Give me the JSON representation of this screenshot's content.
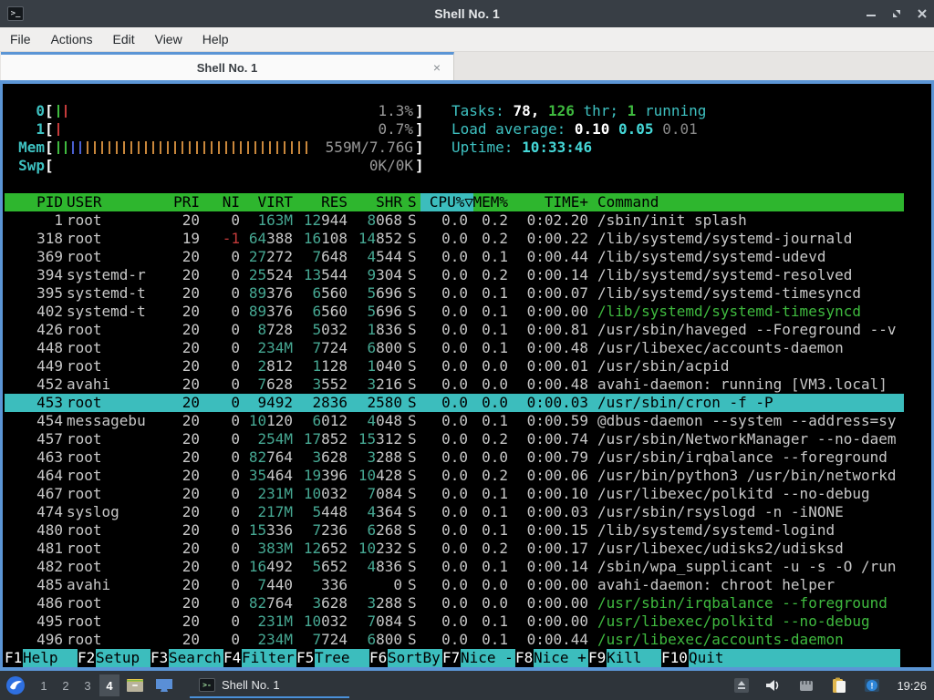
{
  "window": {
    "title": "Shell No. 1",
    "menu": {
      "items": [
        "File",
        "Actions",
        "Edit",
        "View",
        "Help"
      ]
    },
    "tab": {
      "label": "Shell No. 1",
      "close": "×"
    }
  },
  "colors": {
    "accent_blue": "#5b95d5",
    "header_green": "#2eb62e",
    "cyan_bar": "#3cbdbd",
    "meter_green": "#3fba3f",
    "meter_red": "#c43b3b",
    "meter_blue": "#4a5fd0",
    "meter_orange": "#c9873b",
    "teal_number": "#46a893",
    "thread_green": "#3fba3f"
  },
  "htop": {
    "meters": [
      {
        "label": "0",
        "bars": [
          "green",
          "red"
        ],
        "text": "1.3%"
      },
      {
        "label": "1",
        "bars": [
          "red"
        ],
        "text": "0.7%"
      },
      {
        "label": "Mem",
        "bars": [
          "green",
          "green",
          "blue",
          "blue",
          "orange",
          "orange",
          "orange",
          "orange",
          "orange",
          "orange",
          "orange",
          "orange",
          "orange",
          "orange",
          "orange",
          "orange",
          "orange",
          "orange",
          "orange",
          "orange",
          "orange",
          "orange",
          "orange",
          "orange",
          "orange",
          "orange",
          "orange",
          "orange",
          "orange",
          "orange",
          "orange",
          "orange",
          "orange",
          "orange",
          "orange"
        ],
        "text": "559M/7.76G"
      },
      {
        "label": "Swp",
        "bars": [],
        "text": "0K/0K"
      }
    ],
    "tasks_line": [
      {
        "t": "Tasks: ",
        "c": "cyan"
      },
      {
        "t": "78, ",
        "c": "wb"
      },
      {
        "t": "126",
        "c": "gb"
      },
      {
        "t": " thr; ",
        "c": "cyan"
      },
      {
        "t": "1",
        "c": "gb"
      },
      {
        "t": " running",
        "c": "cyan"
      }
    ],
    "load_line": [
      {
        "t": "Load average: ",
        "c": "cyan"
      },
      {
        "t": "0.10 ",
        "c": "wb"
      },
      {
        "t": "0.05 ",
        "c": "cb"
      },
      {
        "t": "0.01",
        "c": "dim"
      }
    ],
    "uptime_line": [
      {
        "t": "Uptime: ",
        "c": "cyan"
      },
      {
        "t": "10:33:46",
        "c": "cb"
      }
    ],
    "table": {
      "headers": {
        "pid": "PID",
        "user": "USER",
        "pri": "PRI",
        "ni": "NI",
        "virt": "VIRT",
        "res": "RES",
        "shr": "SHR",
        "s": "S",
        "sort": "CPU%▽",
        "mem": "MEM%",
        "time": "TIME+",
        "cmd": "Command"
      },
      "rows": [
        {
          "pid": "1",
          "user": "root",
          "pri": "20",
          "ni": "0",
          "virt": "163M",
          "res": "12944",
          "shr": "8068",
          "s": "S",
          "cpu": "0.0",
          "mem": "0.2",
          "time": "0:02.20",
          "cmd": "/sbin/init splash"
        },
        {
          "pid": "318",
          "user": "root",
          "pri": "19",
          "ni": "-1",
          "virt": "64388",
          "res": "16108",
          "shr": "14852",
          "s": "S",
          "cpu": "0.0",
          "mem": "0.2",
          "time": "0:00.22",
          "cmd": "/lib/systemd/systemd-journald"
        },
        {
          "pid": "369",
          "user": "root",
          "pri": "20",
          "ni": "0",
          "virt": "27272",
          "res": "7648",
          "shr": "4544",
          "s": "S",
          "cpu": "0.0",
          "mem": "0.1",
          "time": "0:00.44",
          "cmd": "/lib/systemd/systemd-udevd"
        },
        {
          "pid": "394",
          "user": "systemd-r",
          "pri": "20",
          "ni": "0",
          "virt": "25524",
          "res": "13544",
          "shr": "9304",
          "s": "S",
          "cpu": "0.0",
          "mem": "0.2",
          "time": "0:00.14",
          "cmd": "/lib/systemd/systemd-resolved"
        },
        {
          "pid": "395",
          "user": "systemd-t",
          "pri": "20",
          "ni": "0",
          "virt": "89376",
          "res": "6560",
          "shr": "5696",
          "s": "S",
          "cpu": "0.0",
          "mem": "0.1",
          "time": "0:00.07",
          "cmd": "/lib/systemd/systemd-timesyncd"
        },
        {
          "pid": "402",
          "user": "systemd-t",
          "pri": "20",
          "ni": "0",
          "virt": "89376",
          "res": "6560",
          "shr": "5696",
          "s": "S",
          "cpu": "0.0",
          "mem": "0.1",
          "time": "0:00.00",
          "cmd": "/lib/systemd/systemd-timesyncd",
          "style": "thread"
        },
        {
          "pid": "426",
          "user": "root",
          "pri": "20",
          "ni": "0",
          "virt": "8728",
          "res": "5032",
          "shr": "1836",
          "s": "S",
          "cpu": "0.0",
          "mem": "0.1",
          "time": "0:00.81",
          "cmd": "/usr/sbin/haveged --Foreground --v"
        },
        {
          "pid": "448",
          "user": "root",
          "pri": "20",
          "ni": "0",
          "virt": "234M",
          "res": "7724",
          "shr": "6800",
          "s": "S",
          "cpu": "0.0",
          "mem": "0.1",
          "time": "0:00.48",
          "cmd": "/usr/libexec/accounts-daemon"
        },
        {
          "pid": "449",
          "user": "root",
          "pri": "20",
          "ni": "0",
          "virt": "2812",
          "res": "1128",
          "shr": "1040",
          "s": "S",
          "cpu": "0.0",
          "mem": "0.0",
          "time": "0:00.01",
          "cmd": "/usr/sbin/acpid"
        },
        {
          "pid": "452",
          "user": "avahi",
          "pri": "20",
          "ni": "0",
          "virt": "7628",
          "res": "3552",
          "shr": "3216",
          "s": "S",
          "cpu": "0.0",
          "mem": "0.0",
          "time": "0:00.48",
          "cmd": "avahi-daemon: running [VM3.local]"
        },
        {
          "pid": "453",
          "user": "root",
          "pri": "20",
          "ni": "0",
          "virt": "9492",
          "res": "2836",
          "shr": "2580",
          "s": "S",
          "cpu": "0.0",
          "mem": "0.0",
          "time": "0:00.03",
          "cmd": "/usr/sbin/cron -f -P",
          "style": "selected"
        },
        {
          "pid": "454",
          "user": "messagebu",
          "pri": "20",
          "ni": "0",
          "virt": "10120",
          "res": "6012",
          "shr": "4048",
          "s": "S",
          "cpu": "0.0",
          "mem": "0.1",
          "time": "0:00.59",
          "cmd": "@dbus-daemon --system --address=sy"
        },
        {
          "pid": "457",
          "user": "root",
          "pri": "20",
          "ni": "0",
          "virt": "254M",
          "res": "17852",
          "shr": "15312",
          "s": "S",
          "cpu": "0.0",
          "mem": "0.2",
          "time": "0:00.74",
          "cmd": "/usr/sbin/NetworkManager --no-daem"
        },
        {
          "pid": "463",
          "user": "root",
          "pri": "20",
          "ni": "0",
          "virt": "82764",
          "res": "3628",
          "shr": "3288",
          "s": "S",
          "cpu": "0.0",
          "mem": "0.0",
          "time": "0:00.79",
          "cmd": "/usr/sbin/irqbalance --foreground"
        },
        {
          "pid": "464",
          "user": "root",
          "pri": "20",
          "ni": "0",
          "virt": "35464",
          "res": "19396",
          "shr": "10428",
          "s": "S",
          "cpu": "0.0",
          "mem": "0.2",
          "time": "0:00.06",
          "cmd": "/usr/bin/python3 /usr/bin/networkd"
        },
        {
          "pid": "467",
          "user": "root",
          "pri": "20",
          "ni": "0",
          "virt": "231M",
          "res": "10032",
          "shr": "7084",
          "s": "S",
          "cpu": "0.0",
          "mem": "0.1",
          "time": "0:00.10",
          "cmd": "/usr/libexec/polkitd --no-debug"
        },
        {
          "pid": "474",
          "user": "syslog",
          "pri": "20",
          "ni": "0",
          "virt": "217M",
          "res": "5448",
          "shr": "4364",
          "s": "S",
          "cpu": "0.0",
          "mem": "0.1",
          "time": "0:00.03",
          "cmd": "/usr/sbin/rsyslogd -n -iNONE"
        },
        {
          "pid": "480",
          "user": "root",
          "pri": "20",
          "ni": "0",
          "virt": "15336",
          "res": "7236",
          "shr": "6268",
          "s": "S",
          "cpu": "0.0",
          "mem": "0.1",
          "time": "0:00.15",
          "cmd": "/lib/systemd/systemd-logind"
        },
        {
          "pid": "481",
          "user": "root",
          "pri": "20",
          "ni": "0",
          "virt": "383M",
          "res": "12652",
          "shr": "10232",
          "s": "S",
          "cpu": "0.0",
          "mem": "0.2",
          "time": "0:00.17",
          "cmd": "/usr/libexec/udisks2/udisksd"
        },
        {
          "pid": "482",
          "user": "root",
          "pri": "20",
          "ni": "0",
          "virt": "16492",
          "res": "5652",
          "shr": "4836",
          "s": "S",
          "cpu": "0.0",
          "mem": "0.1",
          "time": "0:00.14",
          "cmd": "/sbin/wpa_supplicant -u -s -O /run"
        },
        {
          "pid": "485",
          "user": "avahi",
          "pri": "20",
          "ni": "0",
          "virt": "7440",
          "res": "336",
          "shr": "0",
          "s": "S",
          "cpu": "0.0",
          "mem": "0.0",
          "time": "0:00.00",
          "cmd": "avahi-daemon: chroot helper"
        },
        {
          "pid": "486",
          "user": "root",
          "pri": "20",
          "ni": "0",
          "virt": "82764",
          "res": "3628",
          "shr": "3288",
          "s": "S",
          "cpu": "0.0",
          "mem": "0.0",
          "time": "0:00.00",
          "cmd": "/usr/sbin/irqbalance --foreground",
          "style": "thread"
        },
        {
          "pid": "495",
          "user": "root",
          "pri": "20",
          "ni": "0",
          "virt": "231M",
          "res": "10032",
          "shr": "7084",
          "s": "S",
          "cpu": "0.0",
          "mem": "0.1",
          "time": "0:00.00",
          "cmd": "/usr/libexec/polkitd --no-debug",
          "style": "thread"
        },
        {
          "pid": "496",
          "user": "root",
          "pri": "20",
          "ni": "0",
          "virt": "234M",
          "res": "7724",
          "shr": "6800",
          "s": "S",
          "cpu": "0.0",
          "mem": "0.1",
          "time": "0:00.44",
          "cmd": "/usr/libexec/accounts-daemon",
          "style": "thread"
        }
      ]
    },
    "fkeys": [
      {
        "key": "F1",
        "label": "Help"
      },
      {
        "key": "F2",
        "label": "Setup"
      },
      {
        "key": "F3",
        "label": "Search"
      },
      {
        "key": "F4",
        "label": "Filter"
      },
      {
        "key": "F5",
        "label": "Tree"
      },
      {
        "key": "F6",
        "label": "SortBy"
      },
      {
        "key": "F7",
        "label": "Nice -"
      },
      {
        "key": "F8",
        "label": "Nice +"
      },
      {
        "key": "F9",
        "label": "Kill"
      },
      {
        "key": "F10",
        "label": "Quit"
      }
    ]
  },
  "taskbar": {
    "workspaces": [
      "1",
      "2",
      "3",
      "4"
    ],
    "active_workspace": "4",
    "task": {
      "label": "Shell No. 1"
    },
    "clock": "19:26"
  }
}
